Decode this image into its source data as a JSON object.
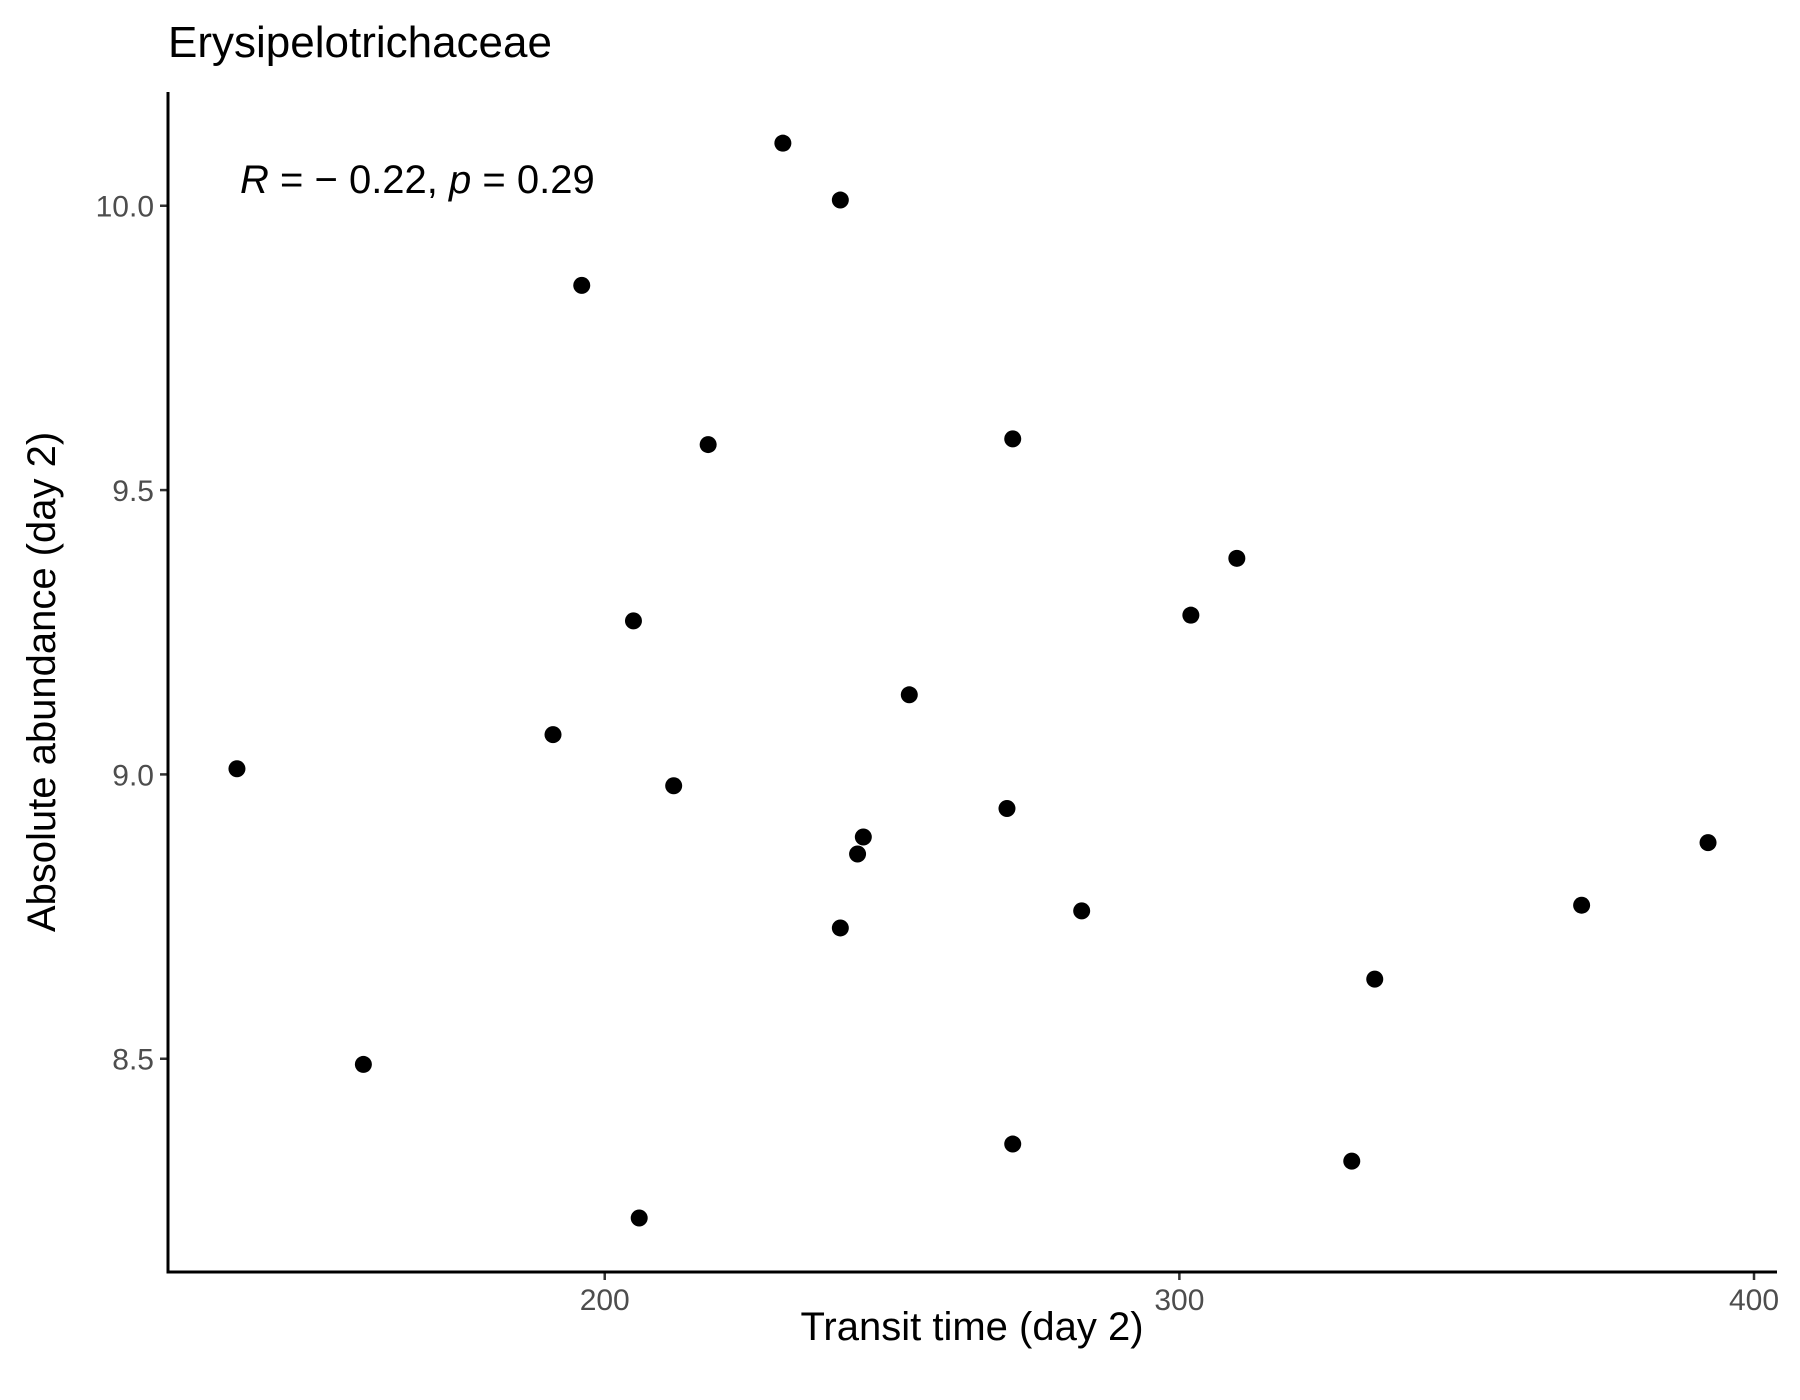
{
  "chart_data": {
    "type": "scatter",
    "title": "Erysipelotrichaceae",
    "xlabel": "Transit time (day 2)",
    "ylabel": "Absolute abundance (day 2)",
    "annotation": {
      "r_symbol": "R",
      "r_text": " = − 0.22, ",
      "p_symbol": "p",
      "p_text": " = 0.29"
    },
    "xlim": [
      124,
      404
    ],
    "ylim": [
      8.125,
      10.2
    ],
    "x_ticks": [
      200,
      300,
      400
    ],
    "x_tick_labels": [
      "200",
      "300",
      "400"
    ],
    "y_ticks": [
      8.5,
      9.0,
      9.5,
      10.0
    ],
    "y_tick_labels": [
      "8.5",
      "9.0",
      "9.5",
      "10.0"
    ],
    "grid": false,
    "legend": "none",
    "point_color": "#000000",
    "x": [
      136,
      158,
      191,
      196,
      205,
      206,
      212,
      218,
      231,
      241,
      241,
      244,
      245,
      253,
      270,
      271,
      271,
      283,
      302,
      310,
      330,
      334,
      370,
      392
    ],
    "y": [
      9.01,
      8.49,
      9.07,
      9.86,
      9.27,
      8.22,
      8.98,
      9.58,
      10.11,
      10.01,
      8.73,
      8.86,
      8.89,
      9.14,
      8.94,
      9.59,
      8.35,
      8.76,
      9.28,
      9.38,
      8.32,
      8.64,
      8.77,
      8.88
    ]
  }
}
